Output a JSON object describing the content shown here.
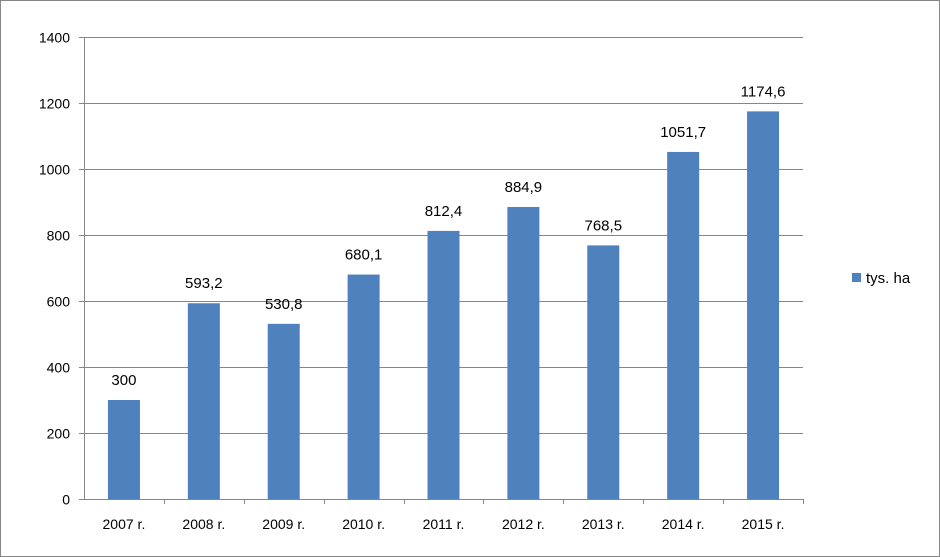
{
  "chart_data": {
    "type": "bar",
    "categories": [
      "2007 r.",
      "2008 r.",
      "2009 r.",
      "2010 r.",
      "2011 r.",
      "2012 r.",
      "2013 r.",
      "2014 r.",
      "2015 r."
    ],
    "series": [
      {
        "name": "tys. ha",
        "values": [
          300,
          593.2,
          530.8,
          680.1,
          812.4,
          884.9,
          768.5,
          1051.7,
          1174.6
        ],
        "labels": [
          "300",
          "593,2",
          "530,8",
          "680,1",
          "812,4",
          "884,9",
          "768,5",
          "1051,7",
          "1174,6"
        ],
        "color": "#4F81BD"
      }
    ],
    "ylim": [
      0,
      1400
    ],
    "yticks": [
      0,
      200,
      400,
      600,
      800,
      1000,
      1200,
      1400
    ],
    "grid": true,
    "legend_position": "right",
    "title": "",
    "xlabel": "",
    "ylabel": ""
  }
}
